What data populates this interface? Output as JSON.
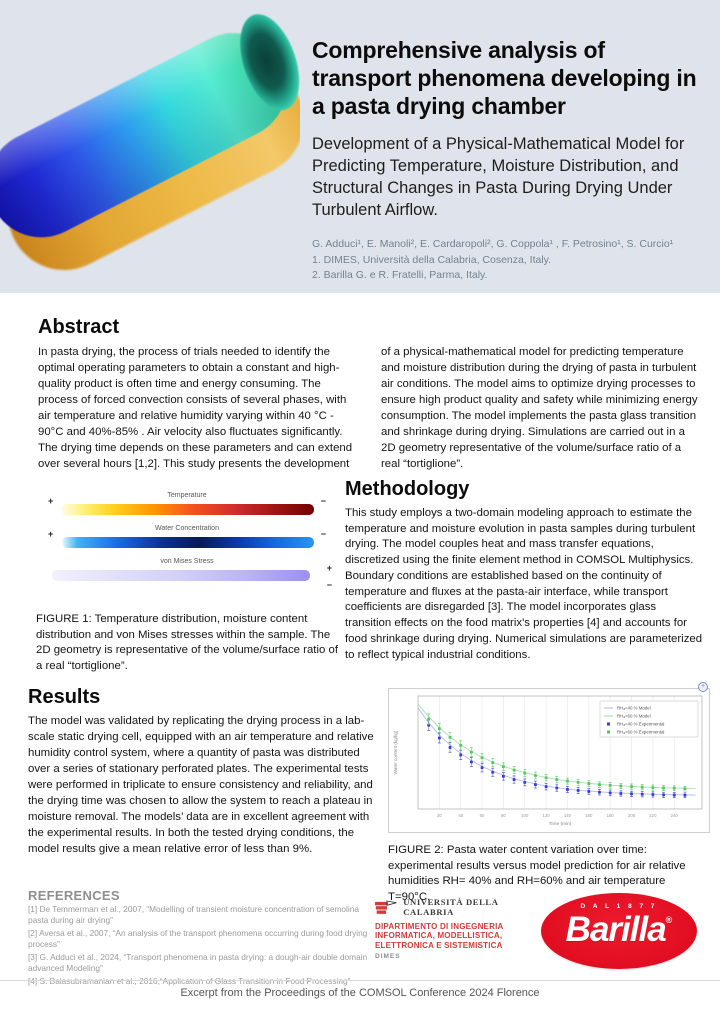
{
  "colors": {
    "header_bg": "#dfe4ec",
    "unical_red": "#d23c38",
    "barilla_red": "#e00e20",
    "exp_blue": "#3a3ad0",
    "exp_green": "#4ec95a",
    "model_blue": "#b7c1f2",
    "model_green": "#aee2b4"
  },
  "header": {
    "title": "Comprehensive analysis of transport phenomena developing in a pasta drying chamber",
    "subtitle": "Development of a Physical-Mathematical Model for Predicting Temperature, Moisture Distribution, and Structural Changes in Pasta During Drying Under Turbulent Airflow.",
    "authors": "G. Adduci¹, E. Manoli², E. Cardaropoli², G. Coppola¹ , F. Petrosino¹, S. Curcio¹",
    "affiliation1": "1. DIMES, Università della Calabria, Cosenza, Italy.",
    "affiliation2": "2. Barilla G. e R. Fratelli, Parma, Italy.",
    "image": "3d-colormap-render-of-tortiglione-pasta"
  },
  "abstract": {
    "title": "Abstract",
    "column1": "In pasta drying, the process of trials needed to identify the optimal operating parameters to obtain a constant and high-quality product is often time and energy consuming. The process of forced convection consists of several phases, with air temperature and relative humidity varying within 40 °C - 90°C and 40%-85% . Air velocity also fluctuates significantly. The drying time depends on these parameters and can extend over several hours [1,2]. This study presents the development",
    "column2": "of a physical-mathematical model for predicting temperature and moisture distribution during the drying of pasta in turbulent air conditions. The model aims to optimize drying processes to ensure high product quality and safety while minimizing energy consumption. The model implements the pasta glass transition and shrinkage during drying. Simulations are carried out in a 2D geometry representative of the volume/surface ratio of a real “tortiglione”."
  },
  "figure1": {
    "bars": [
      {
        "label": "Temperature",
        "plus": "+",
        "minus": "−",
        "sign_layout": "left-right",
        "gradient": [
          "#fffbe2 0%",
          "#fff176 9%",
          "#ffd21f 20%",
          "#ff9800 36%",
          "#f4511e 52%",
          "#d32f2f 68%",
          "#a31515 84%",
          "#740000 100%"
        ]
      },
      {
        "label": "Water Concentration",
        "plus": "+",
        "minus": "−",
        "sign_layout": "left-right",
        "gradient": [
          "#e8fbff 0%",
          "#45b2f2 6%",
          "#1b6ae4 22%",
          "#0d2f90 40%",
          "#071b55 55%",
          "#0d3aa8 70%",
          "#1565e0 84%",
          "#2b95f5 100%"
        ]
      },
      {
        "label": "von Mises Stress",
        "plus": "+",
        "minus": "−",
        "sign_layout": "right-stack",
        "gradient": [
          "#f2f1fd 0%",
          "#e2dffa 25%",
          "#d3cef8 50%",
          "#bdb4f4 75%",
          "#9c8ff0 100%"
        ]
      }
    ],
    "caption": "FIGURE 1: Temperature distribution, moisture content distribution and von Mises stresses within the sample. The 2D geometry is representative of the volume/surface ratio of a real “tortiglione”."
  },
  "methodology": {
    "title": "Methodology",
    "text": "This study employs a two-domain modeling approach to estimate the temperature and moisture evolution in pasta samples during turbulent drying. The model couples heat and mass transfer equations, discretized using the finite element method in COMSOL Multiphysics. Boundary conditions are established based on the continuity of temperature and fluxes at the pasta-air interface, while transport coefficients are disregarded [3]. The model incorporates glass transition effects on the food matrix's properties [4] and accounts for food shrinkage during drying. Numerical simulations are parameterized to reflect typical industrial conditions."
  },
  "results": {
    "title": "Results",
    "text": "The model was validated by replicating the drying process in a lab-scale static drying cell, equipped with an air temperature and relative humidity control system, where a quantity of pasta was distributed over a series of stationary perforated plates. The experimental tests were performed in triplicate to ensure consistency and reliability, and the drying time was chosen to allow the system to reach a plateau in moisture removal. The models’ data are in excellent agreement with the experimental results. In both the tested drying conditions, the model results give a mean relative error of less than 9%."
  },
  "figure2": {
    "caption": "FIGURE 2:  Pasta water content variation over time: experimental results versus model prediction for air relative humidities RH= 40% and RH=60% and air temperature T=90°C.",
    "expand_icon": "+"
  },
  "chart_data": {
    "type": "scatter",
    "title": "",
    "xlabel": "Time (min)",
    "ylabel": "Water content (kg/kg)",
    "xlim": [
      0,
      266
    ],
    "ylim": [
      0.1,
      0.66
    ],
    "xticks": [
      20,
      40,
      60,
      80,
      100,
      120,
      140,
      160,
      180,
      200,
      220,
      240
    ],
    "grid": "vertical",
    "legend_position": "top-right",
    "x_model": [
      0,
      10,
      20,
      30,
      40,
      50,
      60,
      70,
      80,
      90,
      100,
      110,
      120,
      130,
      140,
      150,
      160,
      170,
      180,
      190,
      200,
      210,
      220,
      230,
      240,
      250,
      260
    ],
    "x_exp": [
      10,
      20,
      30,
      40,
      50,
      60,
      70,
      80,
      90,
      100,
      110,
      120,
      130,
      140,
      150,
      160,
      170,
      180,
      190,
      200,
      210,
      220,
      230,
      240,
      250
    ],
    "errors": [
      0.026,
      0.025,
      0.024,
      0.023,
      0.022,
      0.021,
      0.02,
      0.019,
      0.018,
      0.017,
      0.017,
      0.016,
      0.016,
      0.015,
      0.015,
      0.014,
      0.014,
      0.014,
      0.013,
      0.013,
      0.013,
      0.013,
      0.013,
      0.012,
      0.012
    ],
    "series": [
      {
        "name": "RHₐ=40 % Model",
        "type": "line",
        "color": "#b7c1f2",
        "values": [
          0.6,
          0.528,
          0.467,
          0.417,
          0.375,
          0.34,
          0.311,
          0.287,
          0.267,
          0.25,
          0.236,
          0.224,
          0.214,
          0.206,
          0.199,
          0.193,
          0.189,
          0.185,
          0.181,
          0.179,
          0.176,
          0.175,
          0.173,
          0.172,
          0.171,
          0.17,
          0.169
        ]
      },
      {
        "name": "RHₐ=60 % Model",
        "type": "line",
        "color": "#aee2b4",
        "values": [
          0.62,
          0.557,
          0.503,
          0.457,
          0.418,
          0.385,
          0.357,
          0.332,
          0.312,
          0.295,
          0.28,
          0.267,
          0.256,
          0.247,
          0.239,
          0.233,
          0.227,
          0.222,
          0.218,
          0.215,
          0.212,
          0.209,
          0.207,
          0.205,
          0.204,
          0.203,
          0.201
        ]
      },
      {
        "name": "RHₐ=40 % Experimental",
        "type": "scatter",
        "color": "#3a3ad0",
        "values": [
          0.515,
          0.452,
          0.405,
          0.368,
          0.333,
          0.305,
          0.282,
          0.262,
          0.246,
          0.232,
          0.221,
          0.211,
          0.204,
          0.197,
          0.192,
          0.187,
          0.183,
          0.18,
          0.177,
          0.175,
          0.173,
          0.172,
          0.17,
          0.169,
          0.168
        ]
      },
      {
        "name": "RHₐ=60 % Experimental",
        "type": "scatter",
        "color": "#4ec95a",
        "values": [
          0.545,
          0.498,
          0.455,
          0.415,
          0.382,
          0.354,
          0.33,
          0.31,
          0.293,
          0.278,
          0.266,
          0.255,
          0.246,
          0.238,
          0.232,
          0.226,
          0.221,
          0.217,
          0.214,
          0.211,
          0.208,
          0.206,
          0.204,
          0.203,
          0.201
        ]
      }
    ]
  },
  "references": {
    "title": "REFERENCES",
    "items": [
      "[1] De Temmerman et al., 2007,  “Modelling of transient moisture concentration of semolina pasta during air drying”",
      "[2] Aversa et al., 2007, “An analysis of the transport phenomena occurring during food drying process”",
      "[3] G. Adduci et al., 2024, “Transport phenomena in pasta drying: a dough-air double domain advanced Modeling”",
      "[4] S. Balasubramanian et al., 2016,“Application of Glass Transition in Food Processing”"
    ]
  },
  "logos": {
    "unical": {
      "name": "UNIVERSITÀ DELLA CALABRIA",
      "dept": "DIPARTIMENTO DI INGEGNERIA INFORMATICA, MODELLISTICA, ELETTRONICA E SISTEMISTICA",
      "abbrev": "DIMES"
    },
    "barilla": {
      "top": "D A L  1 8 7 7",
      "name": "Barilla",
      "reg": "®"
    }
  },
  "footer": {
    "text": "Excerpt from the Proceedings of the COMSOL Conference 2024 Florence"
  }
}
